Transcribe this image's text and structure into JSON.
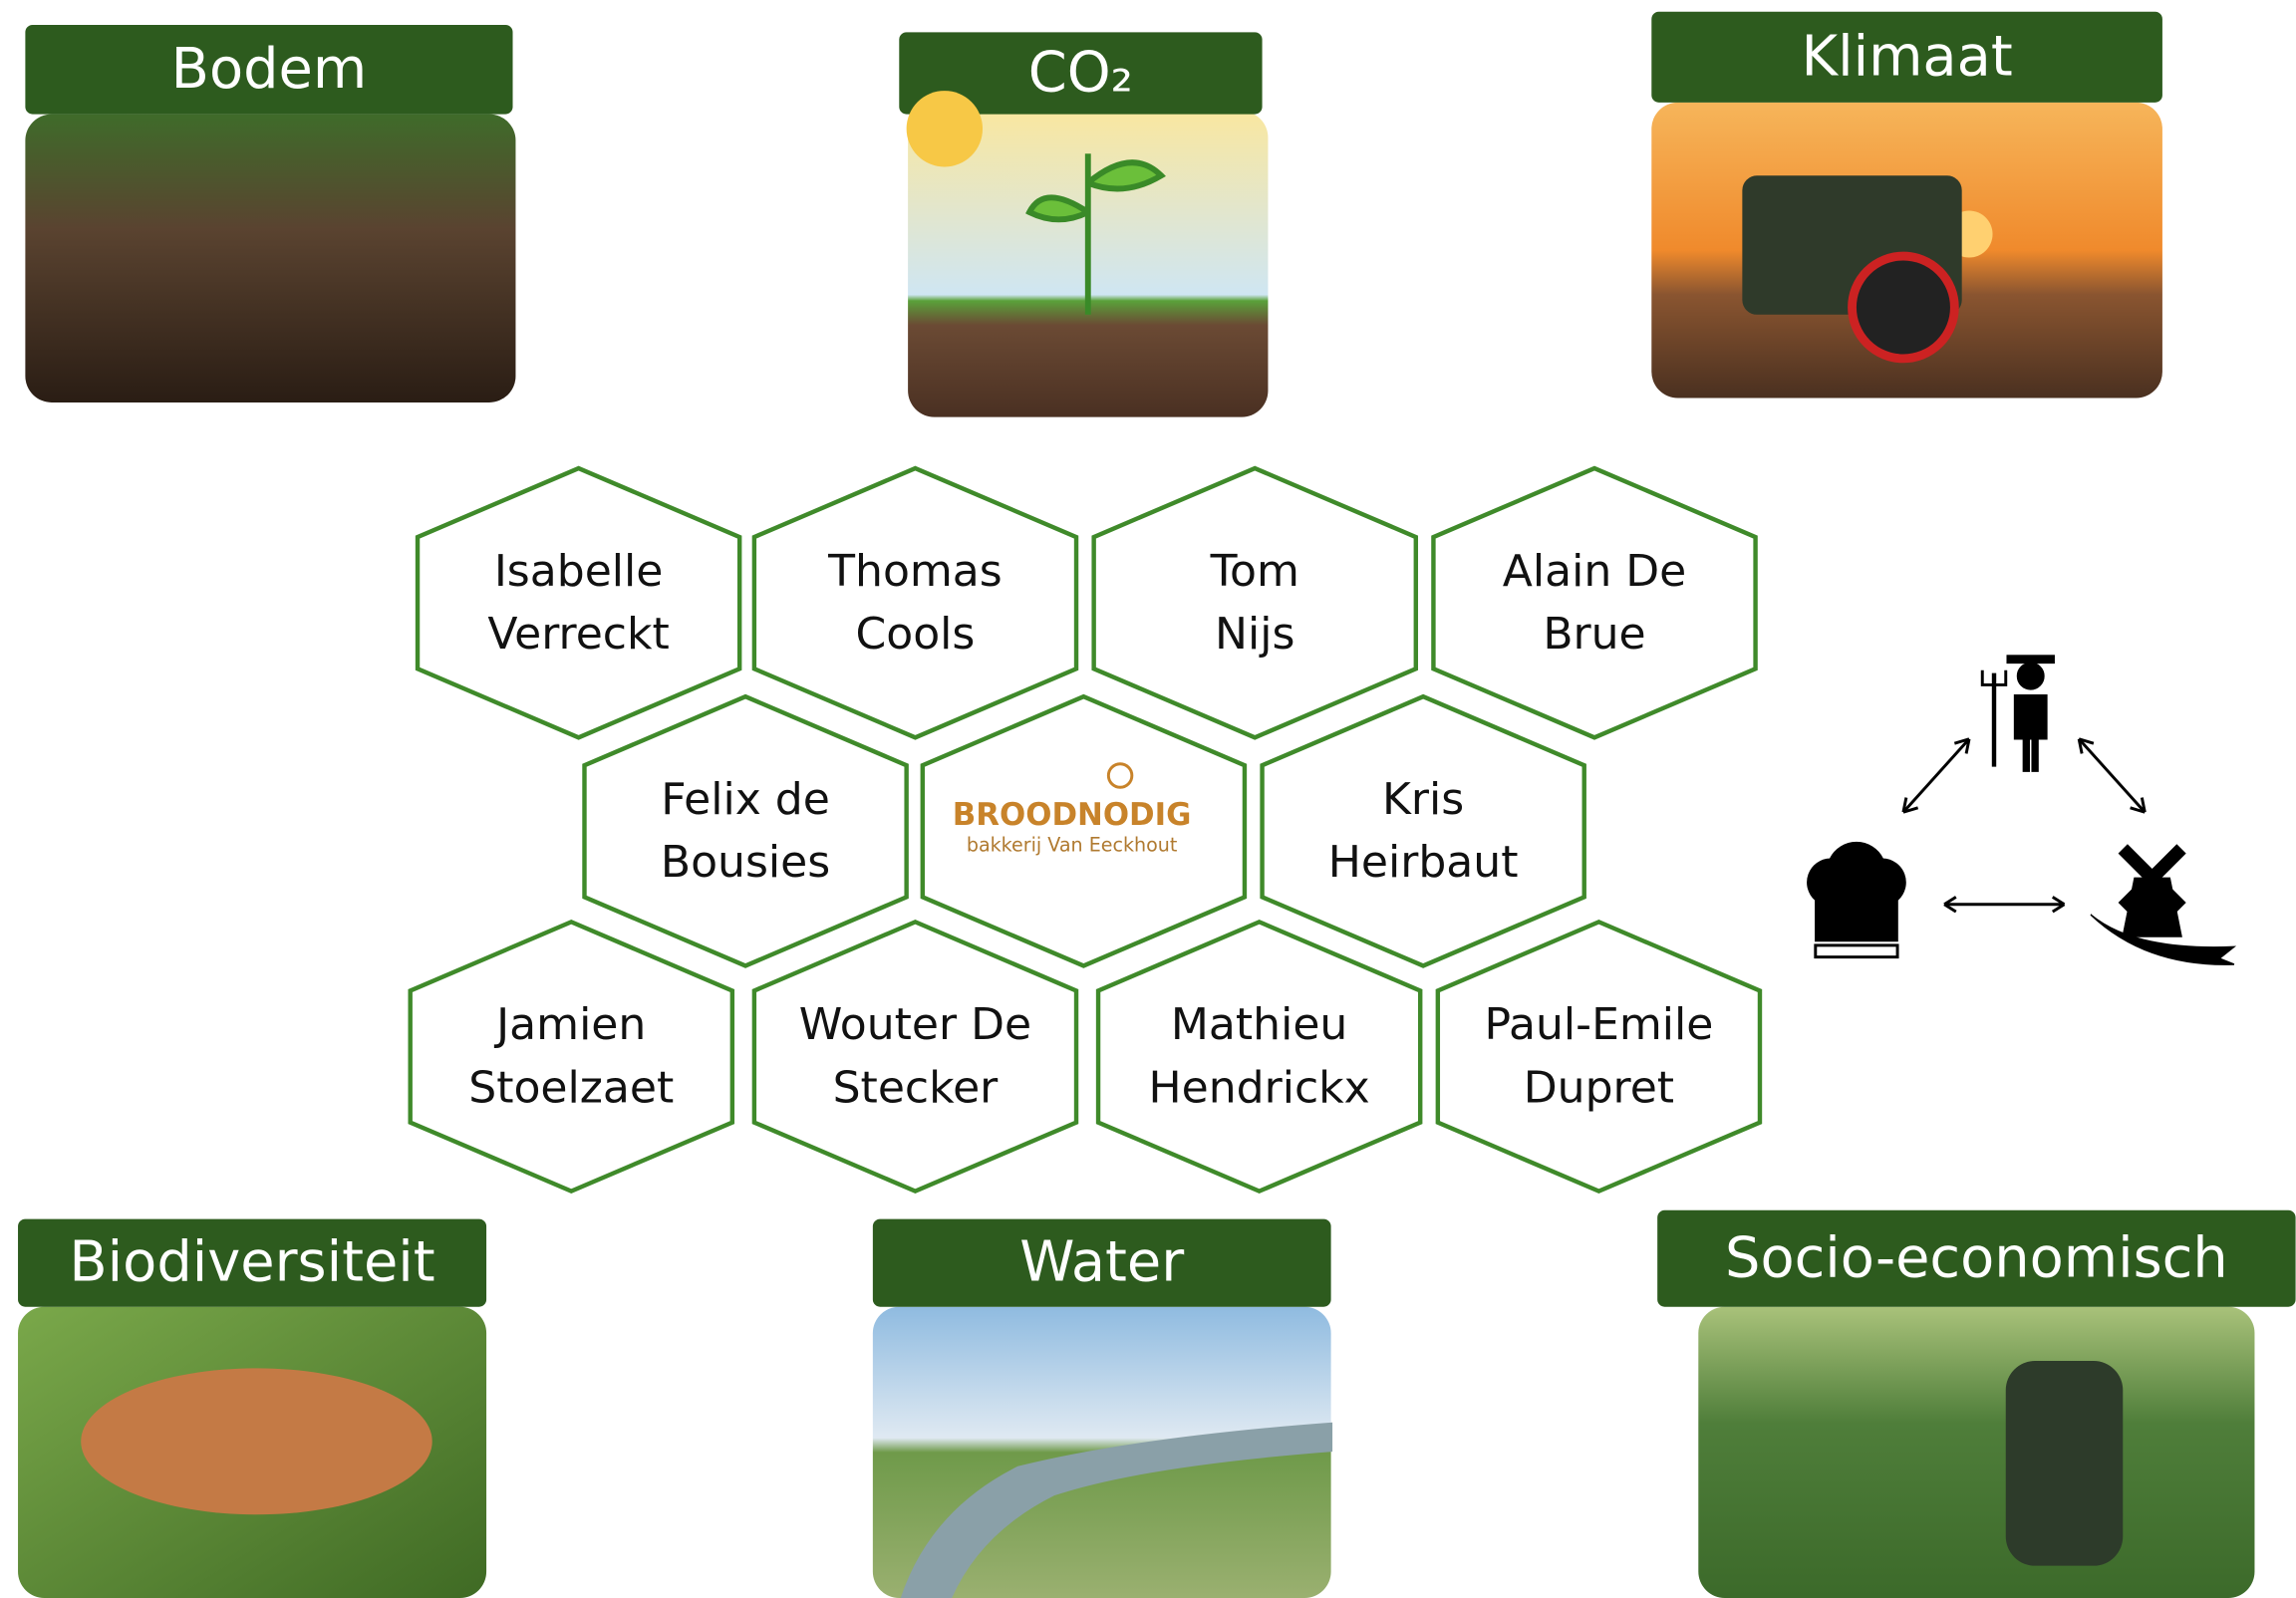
{
  "topics": [
    {
      "title": "Bodem"
    },
    {
      "title": "CO₂"
    },
    {
      "title": "Klimaat"
    },
    {
      "title": "Biodiversiteit"
    },
    {
      "title": "Water"
    },
    {
      "title": "Socio-economisch"
    }
  ],
  "people": [
    {
      "lines": [
        "Isabelle",
        "Verreckt"
      ]
    },
    {
      "lines": [
        "Thomas",
        "Cools"
      ]
    },
    {
      "lines": [
        "Tom",
        "Nijs"
      ]
    },
    {
      "lines": [
        "Alain De",
        "Brue"
      ]
    },
    {
      "lines": [
        "Felix de",
        "Bousies"
      ]
    },
    {
      "lines": [
        "Kris",
        "Heirbaut"
      ]
    },
    {
      "lines": [
        "Jamien",
        "Stoelzaet"
      ]
    },
    {
      "lines": [
        "Wouter De",
        "Stecker"
      ]
    },
    {
      "lines": [
        "Mathieu",
        "Hendrickx"
      ]
    },
    {
      "lines": [
        "Paul-Emile",
        "Dupret"
      ]
    }
  ],
  "logo": {
    "name": "BROODNODIG",
    "subtitle": "bakkerij Van Eeckhout"
  }
}
